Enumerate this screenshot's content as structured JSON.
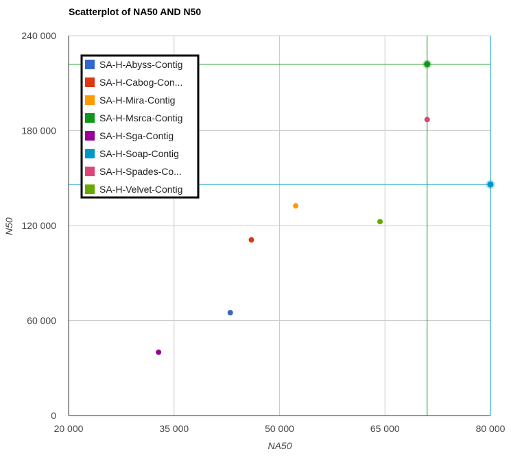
{
  "chart_data": {
    "type": "scatter",
    "title": "Scatterplot of NA50 AND N50",
    "xlabel": "NA50",
    "ylabel": "N50",
    "xlim": [
      20000,
      80000
    ],
    "ylim": [
      0,
      240000
    ],
    "xticks": [
      20000,
      35000,
      50000,
      65000,
      80000
    ],
    "yticks": [
      0,
      60000,
      120000,
      180000,
      240000
    ],
    "xtick_labels": [
      "20 000",
      "35 000",
      "50 000",
      "65 000",
      "80 000"
    ],
    "ytick_labels": [
      "0",
      "60 000",
      "120 000",
      "180 000",
      "240 000"
    ],
    "grid": true,
    "legend_position": "top-left",
    "series": [
      {
        "name": "SA-H-Abyss-Contig",
        "legend_label": "SA-H-Abyss-Contig",
        "color": "#3366cc",
        "points": [
          {
            "x": 43000,
            "y": 65000
          }
        ]
      },
      {
        "name": "SA-H-Cabog-Contig",
        "legend_label": "SA-H-Cabog-Con...",
        "color": "#dc3912",
        "points": [
          {
            "x": 46000,
            "y": 111000
          }
        ]
      },
      {
        "name": "SA-H-Mira-Contig",
        "legend_label": "SA-H-Mira-Contig",
        "color": "#ff9900",
        "points": [
          {
            "x": 52300,
            "y": 132500
          }
        ]
      },
      {
        "name": "SA-H-Msrca-Contig",
        "legend_label": "SA-H-Msrca-Contig",
        "color": "#109618",
        "points": [
          {
            "x": 71000,
            "y": 222000
          }
        ],
        "highlighted": true
      },
      {
        "name": "SA-H-Sga-Contig",
        "legend_label": "SA-H-Sga-Contig",
        "color": "#990099",
        "points": [
          {
            "x": 32800,
            "y": 40000
          }
        ]
      },
      {
        "name": "SA-H-Soap-Contig",
        "legend_label": "SA-H-Soap-Contig",
        "color": "#0099c6",
        "points": [
          {
            "x": 80000,
            "y": 146000
          }
        ],
        "highlighted": true
      },
      {
        "name": "SA-H-Spades-Contig",
        "legend_label": "SA-H-Spades-Co...",
        "color": "#dd4477",
        "points": [
          {
            "x": 71000,
            "y": 187000
          }
        ]
      },
      {
        "name": "SA-H-Velvet-Contig",
        "legend_label": "SA-H-Velvet-Contig",
        "color": "#66aa00",
        "points": [
          {
            "x": 64300,
            "y": 122500
          }
        ]
      }
    ]
  }
}
